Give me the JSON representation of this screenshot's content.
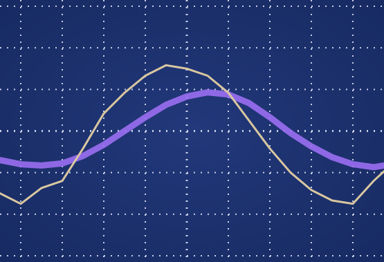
{
  "chart_data": {
    "type": "line",
    "x": [
      -4.5,
      -4,
      -3.5,
      -3,
      -2.5,
      -2,
      -1.5,
      -1,
      -0.5,
      0,
      0.5,
      1,
      1.5,
      2,
      2.5,
      3,
      3.5,
      4,
      4.5,
      4.75
    ],
    "series": [
      {
        "color": "#9b6ff2",
        "values": [
          -0.7,
          -0.8,
          -0.83,
          -0.78,
          -0.6,
          -0.33,
          0,
          0.33,
          0.63,
          0.83,
          0.93,
          0.88,
          0.67,
          0.33,
          -0.05,
          -0.37,
          -0.63,
          -0.8,
          -0.87,
          -0.83
        ]
      },
      {
        "color": "#d9c7a0",
        "values": [
          -1.5,
          -1.75,
          -1.37,
          -1.2,
          -0.42,
          0.42,
          0.92,
          1.33,
          1.58,
          1.5,
          1.33,
          0.92,
          0.25,
          -0.42,
          -1,
          -1.42,
          -1.67,
          -1.75,
          -1.2,
          -0.97
        ]
      }
    ],
    "xlim": [
      -4.5,
      4.75
    ],
    "ylim": [
      -3.15,
      3.15
    ],
    "xticks": [
      -4,
      -3,
      -2,
      -1,
      0,
      1,
      2,
      3,
      4
    ],
    "yticks": [
      -3,
      -2,
      -1,
      0,
      1,
      2,
      3
    ],
    "grid": true
  }
}
